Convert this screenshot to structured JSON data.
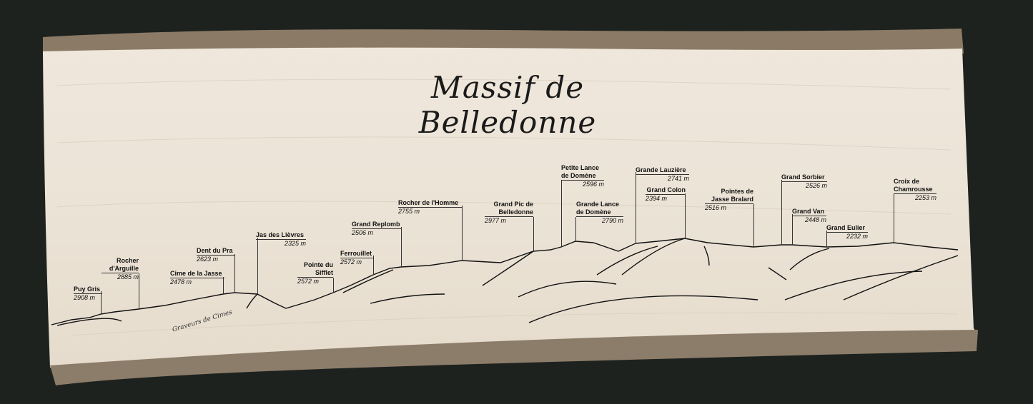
{
  "title": "Massif de Belledonne",
  "signature": "Graveurs de Cimes",
  "colors": {
    "background": "#1e221f",
    "wood": "#ece4d8",
    "bark": "#8a7a66",
    "ink": "#111111"
  },
  "peaks": [
    {
      "name": "Puy Gris",
      "elevation": "2908 m"
    },
    {
      "name": "Rocher d'Arguille",
      "elevation": "2885 m"
    },
    {
      "name": "Cime de la Jasse",
      "elevation": "2478 m"
    },
    {
      "name": "Dent du Pra",
      "elevation": "2623 m"
    },
    {
      "name": "Jas des Lièvres",
      "elevation": "2325 m"
    },
    {
      "name": "Pointe du Sifflet",
      "elevation": "2572 m"
    },
    {
      "name": "Ferrouillet",
      "elevation": "2572 m"
    },
    {
      "name": "Grand Replomb",
      "elevation": "2506 m"
    },
    {
      "name": "Rocher de l'Homme",
      "elevation": "2755 m"
    },
    {
      "name": "Grand Pic de Belledonne",
      "elevation": "2977 m"
    },
    {
      "name": "Petite Lance de Domène",
      "elevation": "2596 m"
    },
    {
      "name": "Grande Lance de Domène",
      "elevation": "2790 m"
    },
    {
      "name": "Grande Lauzière",
      "elevation": "2741 m"
    },
    {
      "name": "Grand Colon",
      "elevation": "2394 m"
    },
    {
      "name": "Pointes de Jasse Bralard",
      "elevation": "2516 m"
    },
    {
      "name": "Grand Sorbier",
      "elevation": "2526 m"
    },
    {
      "name": "Grand Van",
      "elevation": "2448 m"
    },
    {
      "name": "Grand Eulier",
      "elevation": "2232 m"
    },
    {
      "name": "Croix de Chamrousse",
      "elevation": "2253 m"
    }
  ]
}
